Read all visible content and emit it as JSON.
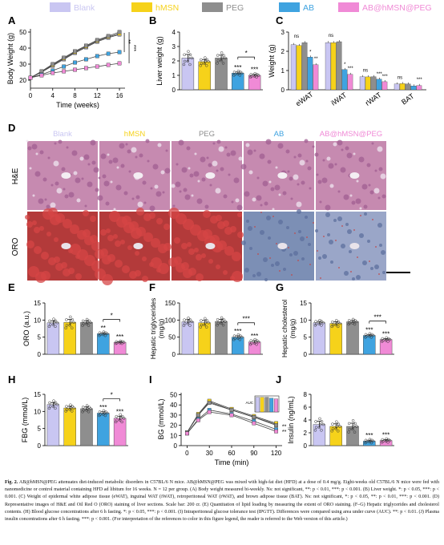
{
  "colors": {
    "Blank": "#c9c6f2",
    "hMSN": "#f6d21a",
    "PEG": "#8e8e8e",
    "AB": "#3fa3e0",
    "AB@hMSN@PEG": "#f08ad6"
  },
  "legend": [
    "Blank",
    "hMSN",
    "PEG",
    "AB",
    "AB@hMSN@PEG"
  ],
  "group_order": [
    "Blank",
    "hMSN",
    "PEG",
    "AB",
    "AB@hMSN@PEG"
  ],
  "panel_letters": {
    "A": "A",
    "B": "B",
    "C": "C",
    "D": "D",
    "E": "E",
    "F": "F",
    "G": "G",
    "H": "H",
    "I": "I",
    "J": "J"
  },
  "micrograph_rows": [
    "H&E",
    "ORO"
  ],
  "micrograph_cols": [
    "Blank",
    "hMSN",
    "PEG",
    "AB",
    "AB@hMSN@PEG"
  ],
  "chart_data": [
    {
      "panel": "A",
      "type": "line",
      "xlabel": "Time (weeks)",
      "ylabel": "Body Weight (g)",
      "xlim": [
        0,
        17
      ],
      "ylim": [
        15,
        52
      ],
      "xticks": [
        0,
        4,
        8,
        12,
        16
      ],
      "yticks": [
        20,
        30,
        40,
        50
      ],
      "x": [
        0,
        2,
        4,
        6,
        8,
        10,
        12,
        14,
        16
      ],
      "series": [
        {
          "group": "Blank",
          "values": [
            21.5,
            25,
            29,
            33,
            37,
            40.5,
            44,
            46.5,
            48.5
          ]
        },
        {
          "group": "hMSN",
          "values": [
            21.5,
            25,
            29.5,
            33.5,
            37.5,
            41,
            44.5,
            47,
            49
          ]
        },
        {
          "group": "PEG",
          "values": [
            21.5,
            25.5,
            30,
            34,
            38,
            41.5,
            45,
            47.5,
            50
          ]
        },
        {
          "group": "AB",
          "values": [
            21.5,
            23.5,
            26,
            28.5,
            31,
            33,
            35,
            36.5,
            37.5
          ]
        },
        {
          "group": "AB@hMSN@PEG",
          "values": [
            21.5,
            23,
            24.5,
            25.5,
            26.5,
            27.5,
            28.5,
            29.5,
            30.5
          ]
        }
      ],
      "annotations": [
        "**",
        "***"
      ]
    },
    {
      "panel": "B",
      "type": "bar",
      "xlabel": "",
      "ylabel": "Liver weight (g)",
      "ylim": [
        0,
        4
      ],
      "yticks": [
        0,
        1,
        2,
        3,
        4
      ],
      "values": [
        2.2,
        1.95,
        2.2,
        1.15,
        1.0
      ],
      "errors": [
        0.25,
        0.15,
        0.2,
        0.08,
        0.07
      ],
      "labels": [
        "",
        "",
        "",
        "***",
        "***"
      ],
      "brackets": [
        {
          "from": 3,
          "to": 4,
          "label": "*"
        }
      ]
    },
    {
      "panel": "C",
      "type": "bar",
      "xlabel": "",
      "ylabel": "Weight (g)",
      "ylim": [
        0,
        3
      ],
      "yticks": [
        0,
        1,
        2,
        3
      ],
      "categories": [
        "eWAT",
        "iWAT",
        "rWAT",
        "BAT"
      ],
      "series": [
        {
          "group": "Blank",
          "values": [
            2.35,
            2.45,
            0.68,
            0.3
          ]
        },
        {
          "group": "hMSN",
          "values": [
            2.3,
            2.45,
            0.67,
            0.32
          ]
        },
        {
          "group": "PEG",
          "values": [
            2.45,
            2.5,
            0.68,
            0.3
          ]
        },
        {
          "group": "AB",
          "values": [
            1.7,
            1.05,
            0.55,
            0.2
          ]
        },
        {
          "group": "AB@hMSN@PEG",
          "values": [
            1.3,
            0.8,
            0.42,
            0.22
          ]
        }
      ],
      "labels": [
        "ns",
        "ns",
        "ns",
        "ns",
        "*",
        "**",
        "*",
        "***",
        "***",
        "***",
        "***"
      ]
    },
    {
      "panel": "E",
      "type": "bar",
      "xlabel": "",
      "ylabel": "ORO (a.u.)",
      "ylim": [
        0,
        15
      ],
      "yticks": [
        0,
        5,
        10,
        15
      ],
      "values": [
        9.2,
        9.3,
        9.3,
        6.0,
        3.5
      ],
      "errors": [
        0.6,
        0.9,
        0.5,
        0.3,
        0.2
      ],
      "labels": [
        "",
        "",
        "",
        "**",
        "***"
      ],
      "brackets": [
        {
          "from": 3,
          "to": 4,
          "label": "*"
        }
      ]
    },
    {
      "panel": "F",
      "type": "bar",
      "xlabel": "",
      "ylabel": "Hepatic triglycerides\n(mg/g)",
      "ylim": [
        0,
        150
      ],
      "yticks": [
        0,
        50,
        100,
        150
      ],
      "values": [
        95,
        92,
        96,
        50,
        36
      ],
      "errors": [
        6,
        7,
        6,
        4,
        4
      ],
      "labels": [
        "",
        "",
        "",
        "***",
        "***"
      ],
      "brackets": [
        {
          "from": 3,
          "to": 4,
          "label": "***"
        }
      ]
    },
    {
      "panel": "G",
      "type": "bar",
      "xlabel": "",
      "ylabel": "Hepatic cholesterol\n(mg/g)",
      "ylim": [
        0,
        15
      ],
      "yticks": [
        0,
        5,
        10,
        15
      ],
      "values": [
        9.2,
        9.0,
        9.5,
        5.5,
        4.3
      ],
      "errors": [
        0.4,
        0.5,
        0.4,
        0.3,
        0.3
      ],
      "labels": [
        "",
        "",
        "",
        "***",
        "***"
      ],
      "brackets": [
        {
          "from": 3,
          "to": 4,
          "label": "***"
        }
      ]
    },
    {
      "panel": "H",
      "type": "bar",
      "xlabel": "",
      "ylabel": "FBG (mmol/L)",
      "ylim": [
        0,
        15
      ],
      "yticks": [
        0,
        5,
        10,
        15
      ],
      "values": [
        12.0,
        11.0,
        10.8,
        9.5,
        8.0
      ],
      "errors": [
        0.6,
        0.5,
        0.5,
        0.4,
        0.6
      ],
      "labels": [
        "",
        "",
        "",
        "***",
        "***"
      ],
      "brackets": [
        {
          "from": 3,
          "to": 4,
          "label": "*"
        }
      ]
    },
    {
      "panel": "I",
      "type": "line",
      "xlabel": "Time (min)",
      "ylabel": "BG (mmol/L)",
      "xlim": [
        -8,
        128
      ],
      "ylim": [
        0,
        52
      ],
      "xticks": [
        0,
        30,
        60,
        90,
        120
      ],
      "yticks": [
        0,
        10,
        20,
        30,
        40,
        50
      ],
      "x": [
        0,
        15,
        30,
        60,
        90,
        120
      ],
      "series": [
        {
          "group": "Blank",
          "values": [
            13,
            30,
            43,
            35,
            28,
            21
          ]
        },
        {
          "group": "hMSN",
          "values": [
            13,
            31,
            44,
            36,
            29,
            22
          ]
        },
        {
          "group": "PEG",
          "values": [
            13,
            30,
            42,
            35,
            28,
            20
          ]
        },
        {
          "group": "AB",
          "values": [
            12,
            26,
            35,
            31,
            24,
            16
          ]
        },
        {
          "group": "AB@hMSN@PEG",
          "values": [
            12,
            25,
            33,
            30,
            22,
            14
          ]
        }
      ],
      "inset": {
        "ylabel": "AUC",
        "values": [
          4.6,
          4.6,
          4.6,
          4.3,
          4.1
        ],
        "labels": [
          "",
          "",
          "",
          "**",
          "**"
        ]
      },
      "annotations": [
        "**",
        "**"
      ]
    },
    {
      "panel": "J",
      "type": "bar",
      "xlabel": "",
      "ylabel": "Insulin (ng/mL)",
      "ylim": [
        0,
        8
      ],
      "yticks": [
        0,
        2,
        4,
        6,
        8
      ],
      "values": [
        3.3,
        3.0,
        3.0,
        0.7,
        0.8
      ],
      "errors": [
        0.5,
        0.4,
        0.5,
        0.15,
        0.15
      ],
      "labels": [
        "",
        "",
        "",
        "***",
        "***"
      ]
    }
  ],
  "caption": {
    "label": "Fig. 2.",
    "text": "AB@hMSN@PEG attenuates diet-induced metabolic disorders in C57BL/6 N mice. AB@hMSN@PEG was mixed with high-fat diet (HFD) at a dose of 0.4 mg/g. Eight-weeks old C57BL/6 N mice were fed with nanomedicine or control material containing HFD ad libitum for 16 weeks. N = 12 per group. (A) Body weight measured bi-weekly. Ns: not significant, **: p < 0.01, ***: p < 0.001. (B) Liver weight. *: p < 0.05, ***: p < 0.001. (C) Weight of epidermal white adipose tissue (eWAT), inguinal WAT (iWAT), retroperitoneal WAT (rWAT), and brown adipose tissue (BAT). Ns: not significant, *: p < 0.05, **: p < 0.01, ***: p < 0.001. (D) Representative images of H&E and Oil Red O (ORO) staining of liver sections. Scale bar: 200 cr. (E) Quantitation of lipid loading by measuring the extent of ORO staining. (F–G) Hepatic triglycerides and cholesterol contents. (H) Blood glucose concentrations after 6 h fasting. *: p < 0.05, ***: p < 0.001. (I) Intraperitoneal glucose tolerance test (IPGTT). Differences were compared using area under curve (AUC). **: p < 0.01. (J) Plasma insulin concentrations after 6 h fasting. ***: p < 0.001. (For interpretation of the references to color in this figure legend, the reader is referred to the Web version of this article.)"
  }
}
